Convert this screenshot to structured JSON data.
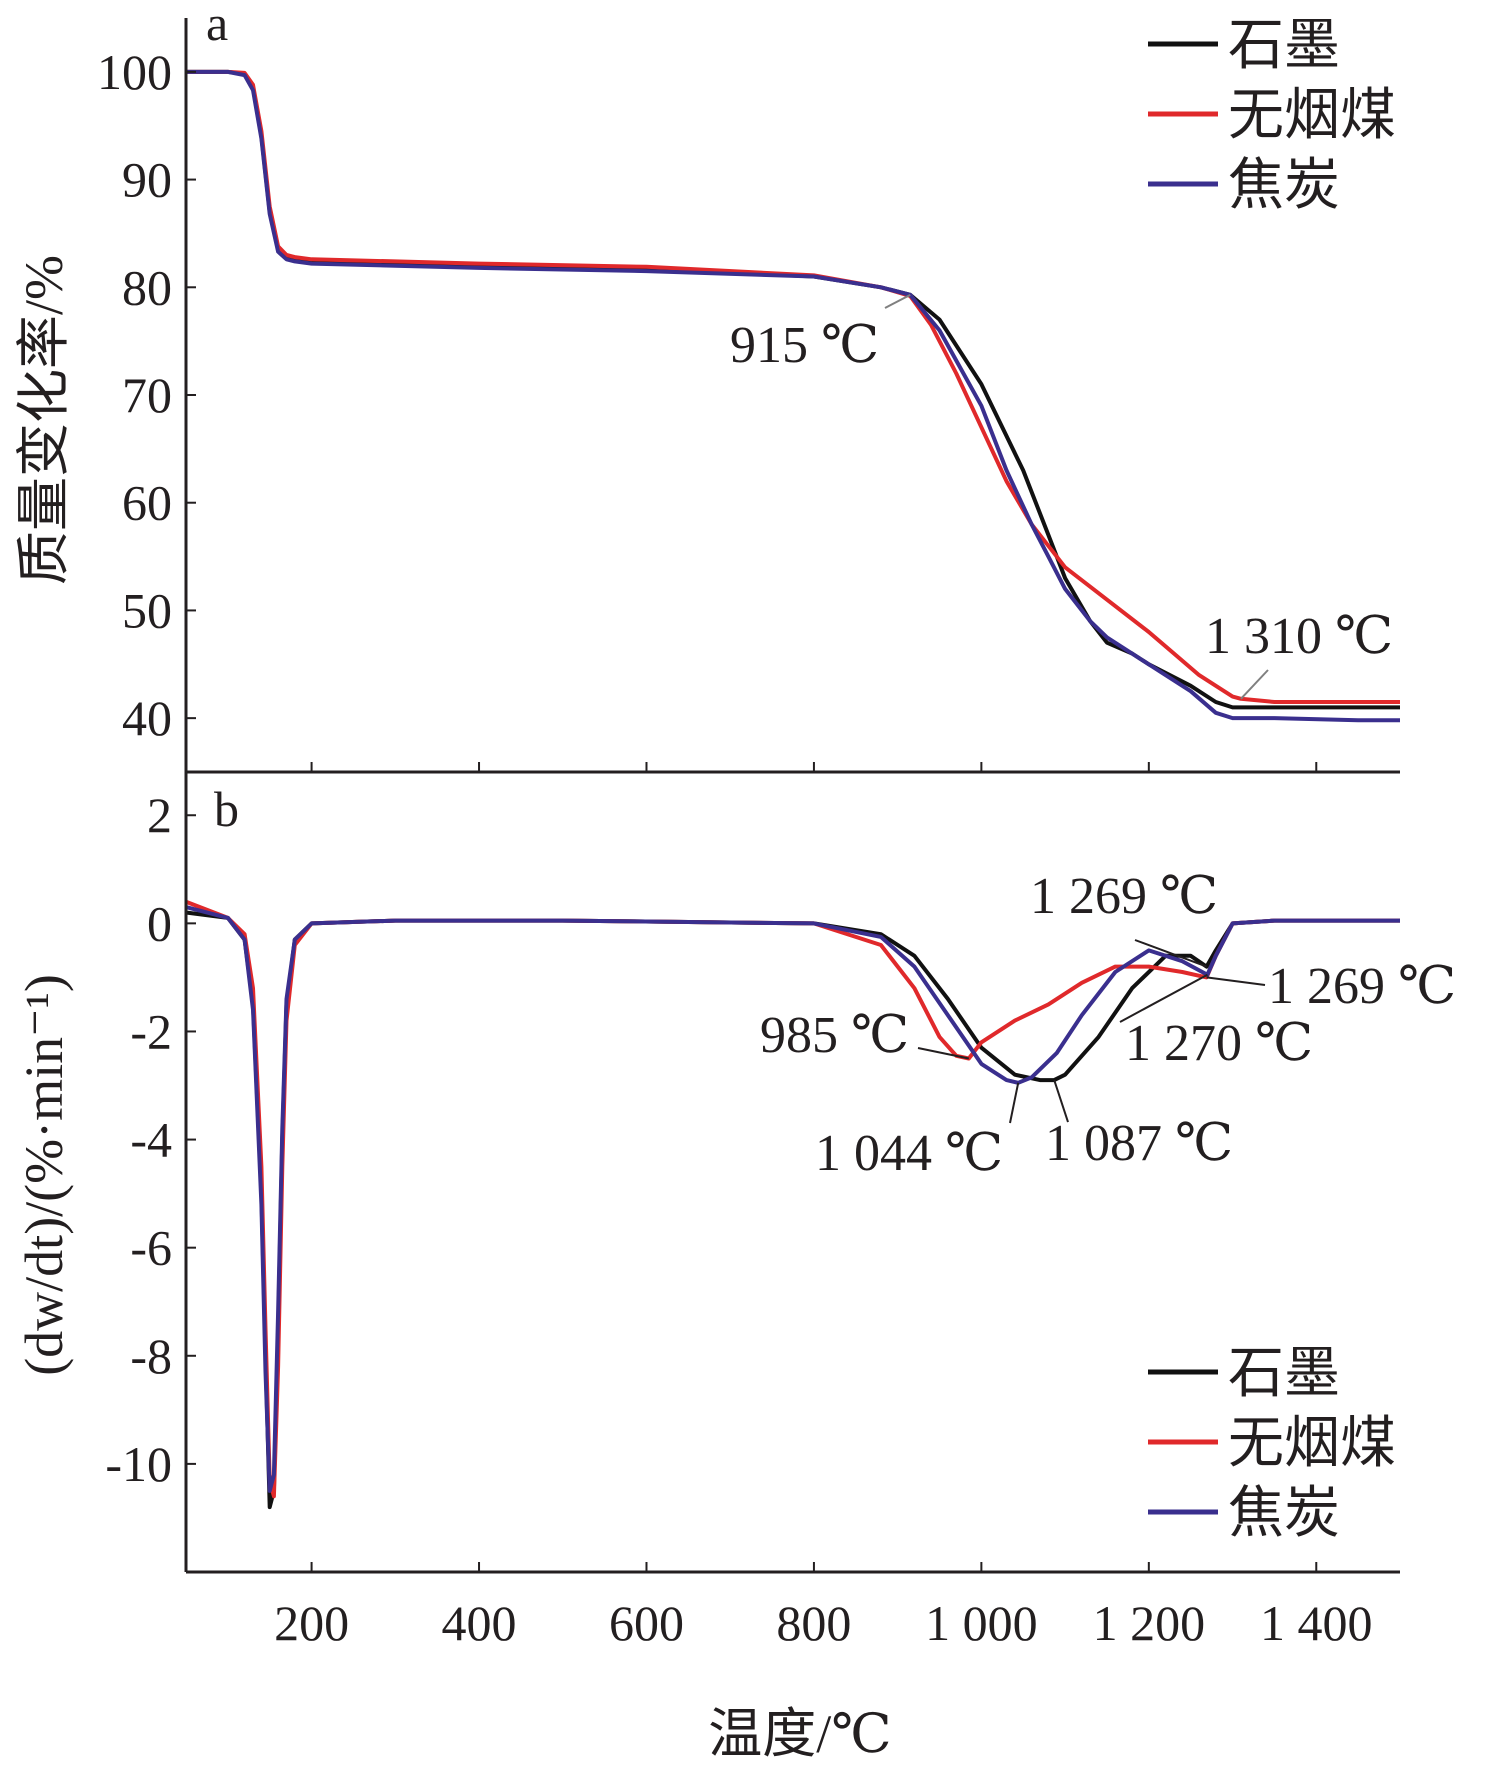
{
  "figure": {
    "xlabel": "温度/℃",
    "x_tick_labels": [
      "200",
      "400",
      "600",
      "800",
      "1 000",
      "1 200",
      "1 400"
    ]
  },
  "chart_data": [
    {
      "type": "line",
      "panel_label": "a",
      "ylabel": "质量变化率/%",
      "xlim": [
        50,
        1500
      ],
      "ylim": [
        35,
        105
      ],
      "x_ticks": [
        200,
        400,
        600,
        800,
        1000,
        1200,
        1400
      ],
      "y_ticks": [
        40,
        50,
        60,
        70,
        80,
        90,
        100
      ],
      "y_tick_labels": [
        "40",
        "50",
        "60",
        "70",
        "80",
        "90",
        "100"
      ],
      "legend_position": "top-right",
      "series": [
        {
          "name": "石墨",
          "color": "#111111",
          "x": [
            50,
            100,
            120,
            130,
            140,
            150,
            160,
            170,
            180,
            200,
            300,
            400,
            600,
            800,
            880,
            915,
            950,
            1000,
            1050,
            1080,
            1100,
            1130,
            1150,
            1180,
            1200,
            1250,
            1280,
            1300,
            1310,
            1350,
            1450,
            1500
          ],
          "y": [
            100,
            100,
            99.8,
            98.5,
            94,
            87,
            83.5,
            82.8,
            82.6,
            82.4,
            82.2,
            82,
            81.7,
            81,
            80,
            79.3,
            77,
            71,
            63,
            57,
            53,
            49,
            47,
            46,
            45,
            43,
            41.5,
            41,
            41,
            41,
            41,
            41
          ]
        },
        {
          "name": "无烟煤",
          "color": "#e0292b",
          "x": [
            50,
            100,
            120,
            130,
            140,
            150,
            160,
            170,
            180,
            200,
            300,
            400,
            600,
            800,
            880,
            915,
            940,
            970,
            1000,
            1030,
            1060,
            1100,
            1150,
            1200,
            1230,
            1260,
            1290,
            1300,
            1310,
            1350,
            1450,
            1500
          ],
          "y": [
            100,
            100,
            99.9,
            98.8,
            94.5,
            87.5,
            83.8,
            83,
            82.8,
            82.6,
            82.4,
            82.2,
            81.9,
            81.1,
            80,
            79.2,
            76.5,
            72,
            67,
            62,
            58,
            54,
            51,
            48,
            46,
            44,
            42.5,
            42,
            41.8,
            41.5,
            41.5,
            41.5
          ]
        },
        {
          "name": "焦炭",
          "color": "#3a2f8e",
          "x": [
            50,
            100,
            120,
            130,
            140,
            150,
            160,
            170,
            180,
            200,
            300,
            400,
            600,
            800,
            880,
            915,
            950,
            1000,
            1030,
            1060,
            1080,
            1100,
            1130,
            1150,
            1200,
            1250,
            1280,
            1300,
            1310,
            1350,
            1450,
            1500
          ],
          "y": [
            100,
            100,
            99.7,
            98.3,
            93.8,
            86.8,
            83.3,
            82.6,
            82.4,
            82.2,
            82,
            81.8,
            81.5,
            81,
            80,
            79.3,
            76,
            69,
            63,
            58,
            55,
            52,
            49,
            47.5,
            45,
            42.5,
            40.5,
            40,
            40,
            40,
            39.8,
            39.8
          ]
        }
      ],
      "annotations": [
        {
          "text": "915 ℃",
          "x": 915,
          "y": 79.3
        },
        {
          "text": "1 310 ℃",
          "x": 1310,
          "y": 41.8
        }
      ]
    },
    {
      "type": "line",
      "panel_label": "b",
      "ylabel": "(dw/dt)/(%·min⁻¹)",
      "xlim": [
        50,
        1500
      ],
      "ylim": [
        -12,
        2.8
      ],
      "x_ticks": [
        200,
        400,
        600,
        800,
        1000,
        1200,
        1400
      ],
      "y_ticks": [
        -10,
        -8,
        -6,
        -4,
        -2,
        0,
        2
      ],
      "y_tick_labels": [
        "-10",
        "-8",
        "-6",
        "-4",
        "-2",
        "0",
        "2"
      ],
      "legend_position": "bottom-right",
      "series": [
        {
          "name": "石墨",
          "color": "#111111",
          "x": [
            50,
            100,
            120,
            130,
            140,
            145,
            150,
            155,
            160,
            165,
            170,
            180,
            200,
            300,
            500,
            800,
            880,
            920,
            960,
            1000,
            1040,
            1070,
            1087,
            1100,
            1140,
            1180,
            1220,
            1250,
            1269,
            1280,
            1300,
            1350,
            1500
          ],
          "y": [
            0.2,
            0.1,
            -0.3,
            -1.5,
            -5,
            -8,
            -10.8,
            -10.5,
            -7.5,
            -4,
            -1.5,
            -0.3,
            0,
            0.05,
            0.05,
            0,
            -0.2,
            -0.6,
            -1.4,
            -2.3,
            -2.8,
            -2.9,
            -2.9,
            -2.8,
            -2.1,
            -1.2,
            -0.6,
            -0.6,
            -0.8,
            -0.5,
            0,
            0.05,
            0.05
          ]
        },
        {
          "name": "无烟煤",
          "color": "#e0292b",
          "x": [
            50,
            100,
            120,
            130,
            140,
            145,
            150,
            155,
            160,
            165,
            170,
            180,
            200,
            300,
            500,
            800,
            880,
            920,
            950,
            970,
            985,
            1000,
            1040,
            1080,
            1120,
            1160,
            1200,
            1240,
            1269,
            1280,
            1300,
            1350,
            1500
          ],
          "y": [
            0.4,
            0.1,
            -0.2,
            -1.2,
            -4.5,
            -7.5,
            -10.3,
            -10.6,
            -8.2,
            -4.5,
            -1.8,
            -0.4,
            0,
            0.05,
            0.05,
            0,
            -0.4,
            -1.2,
            -2.1,
            -2.45,
            -2.5,
            -2.2,
            -1.8,
            -1.5,
            -1.1,
            -0.8,
            -0.8,
            -0.9,
            -1.0,
            -0.6,
            0,
            0.05,
            0.05
          ]
        },
        {
          "name": "焦炭",
          "color": "#3a2f8e",
          "x": [
            50,
            100,
            120,
            130,
            140,
            145,
            150,
            155,
            160,
            165,
            170,
            180,
            200,
            300,
            500,
            800,
            880,
            920,
            960,
            1000,
            1030,
            1044,
            1060,
            1090,
            1120,
            1160,
            1200,
            1240,
            1270,
            1280,
            1300,
            1350,
            1500
          ],
          "y": [
            0.3,
            0.1,
            -0.3,
            -1.6,
            -5.2,
            -8.3,
            -10.5,
            -10.2,
            -7.2,
            -3.8,
            -1.4,
            -0.3,
            0,
            0.05,
            0.05,
            0,
            -0.25,
            -0.8,
            -1.7,
            -2.6,
            -2.9,
            -2.95,
            -2.85,
            -2.4,
            -1.7,
            -0.9,
            -0.5,
            -0.7,
            -0.95,
            -0.6,
            0,
            0.05,
            0.05
          ]
        }
      ],
      "annotations": [
        {
          "text": "1 269 ℃",
          "x": 1269,
          "y": -0.8
        },
        {
          "text": "1 269 ℃",
          "x": 1269,
          "y": -1.0
        },
        {
          "text": "985 ℃",
          "x": 985,
          "y": -2.5
        },
        {
          "text": "1 270 ℃",
          "x": 1270,
          "y": -0.95
        },
        {
          "text": "1 044 ℃",
          "x": 1044,
          "y": -2.95
        },
        {
          "text": "1 087 ℃",
          "x": 1087,
          "y": -2.9
        }
      ]
    }
  ]
}
